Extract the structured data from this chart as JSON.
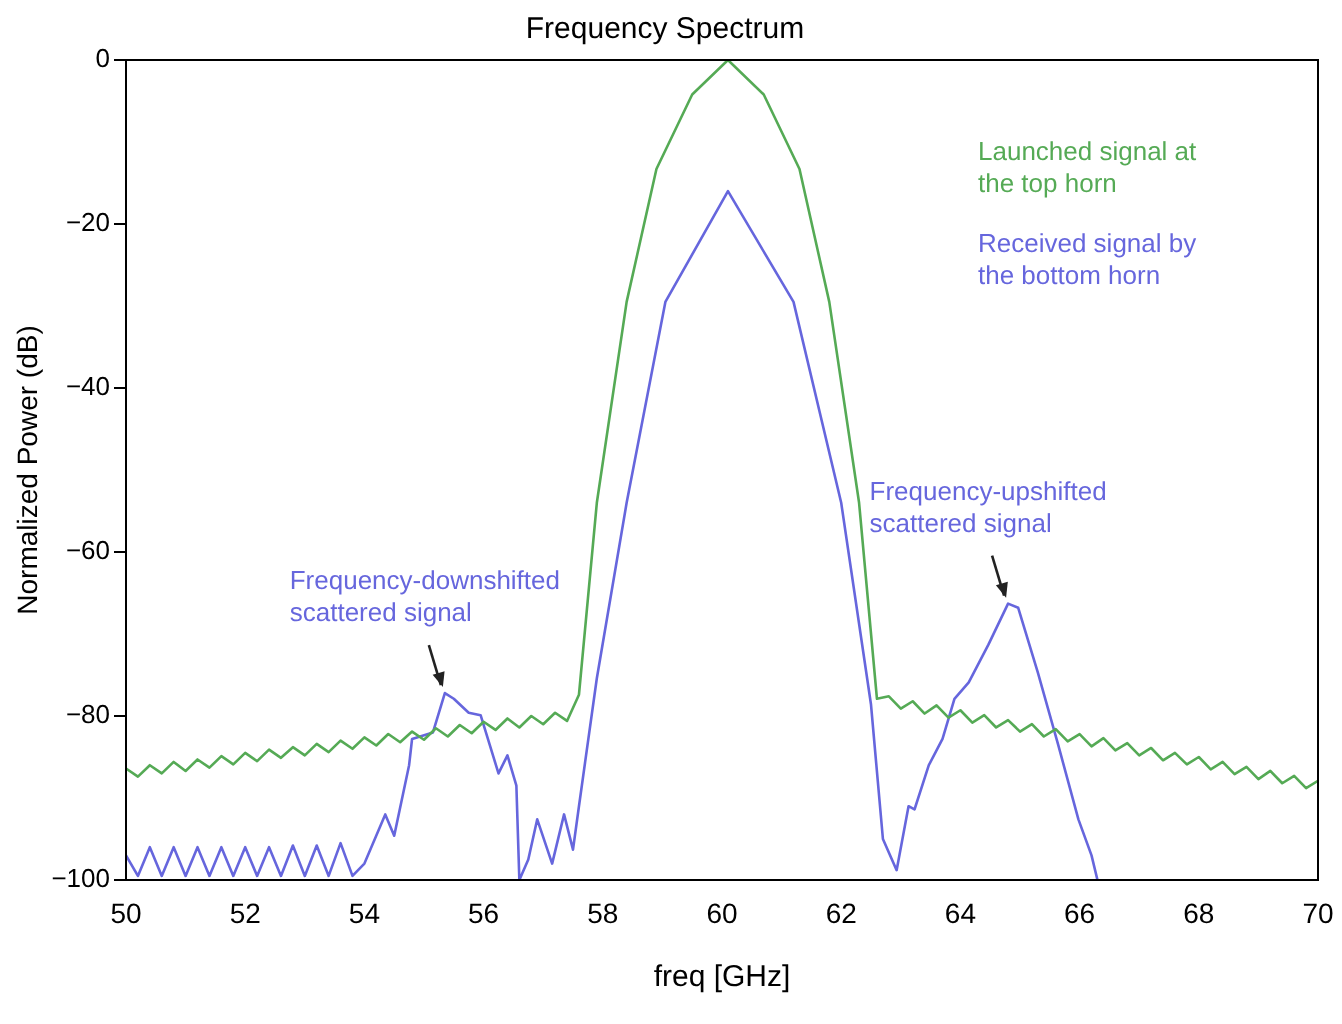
{
  "chart_data": {
    "type": "line",
    "title": "Frequency Spectrum",
    "xlabel": "freq [GHz]",
    "ylabel": "Normalized Power (dB)",
    "xlim": [
      50,
      70
    ],
    "xticks": [
      50,
      52,
      54,
      56,
      58,
      60,
      62,
      64,
      66,
      68,
      70
    ],
    "ylim": [
      -100,
      0
    ],
    "yticks": [
      -100,
      -80,
      -60,
      -40,
      -20,
      0
    ],
    "grid": false,
    "legend": "top right",
    "marker": "none",
    "line_style": "solid",
    "series": [
      {
        "name": "Launched signal at the top horn",
        "color": "#55aa55",
        "x": [
          50,
          50.2,
          50.4,
          50.6,
          50.8,
          51,
          51.2,
          51.4,
          51.6,
          51.8,
          52,
          52.2,
          52.4,
          52.6,
          52.8,
          53,
          53.2,
          53.4,
          53.6,
          53.8,
          54,
          54.2,
          54.4,
          54.6,
          54.8,
          55,
          55.2,
          55.4,
          55.6,
          55.8,
          56,
          56.2,
          56.4,
          56.6,
          56.8,
          57,
          57.2,
          57.4,
          57.6,
          57.9,
          58.4,
          58.9,
          59.5,
          60.1,
          60.7,
          61.3,
          61.8,
          62.3,
          62.6,
          62.8,
          63,
          63.2,
          63.4,
          63.6,
          63.8,
          64,
          64.2,
          64.4,
          64.6,
          64.8,
          65,
          65.2,
          65.4,
          65.6,
          65.8,
          66,
          66.2,
          66.4,
          66.6,
          66.8,
          67,
          67.2,
          67.4,
          67.6,
          67.8,
          68,
          68.2,
          68.4,
          68.6,
          68.8,
          69,
          69.2,
          69.4,
          69.6,
          69.8,
          70
        ],
        "values": [
          -86.4,
          -87.4,
          -86,
          -87,
          -85.6,
          -86.7,
          -85.3,
          -86.3,
          -84.9,
          -85.9,
          -84.5,
          -85.5,
          -84.1,
          -85.1,
          -83.8,
          -84.8,
          -83.4,
          -84.4,
          -83,
          -84,
          -82.6,
          -83.6,
          -82.2,
          -83.2,
          -81.9,
          -82.9,
          -81.5,
          -82.5,
          -81.1,
          -82.1,
          -80.7,
          -81.7,
          -80.3,
          -81.4,
          -80,
          -81,
          -79.6,
          -80.6,
          -77.4,
          -54,
          -29.5,
          -13.3,
          -4.2,
          0,
          -4.2,
          -13.3,
          -29.5,
          -54,
          -77.9,
          -77.6,
          -79.1,
          -78.2,
          -79.7,
          -78.7,
          -80.2,
          -79.3,
          -80.8,
          -79.9,
          -81.4,
          -80.5,
          -81.9,
          -81,
          -82.5,
          -81.6,
          -83.1,
          -82.2,
          -83.7,
          -82.7,
          -84.2,
          -83.3,
          -84.8,
          -83.9,
          -85.4,
          -84.5,
          -85.9,
          -85,
          -86.5,
          -85.6,
          -87.1,
          -86.2,
          -87.7,
          -86.7,
          -88.2,
          -87.3,
          -88.8,
          -87.9
        ]
      },
      {
        "name": "Received signal by the bottom horn",
        "color": "#6666dd",
        "x": [
          50,
          50.2,
          50.4,
          50.6,
          50.8,
          51,
          51.2,
          51.4,
          51.6,
          51.8,
          52,
          52.2,
          52.4,
          52.6,
          52.8,
          53,
          53.2,
          53.4,
          53.6,
          53.8,
          54,
          54.35,
          54.5,
          54.75,
          54.8,
          55.15,
          55.35,
          55.5,
          55.75,
          55.95,
          56.25,
          56.4,
          56.55,
          56.6,
          56.75,
          56.9,
          57.15,
          57.35,
          57.5,
          57.6,
          57.9,
          58.4,
          59.05,
          60.1,
          61.2,
          62,
          62.5,
          62.7,
          62.93,
          63.13,
          63.23,
          63.47,
          63.7,
          63.9,
          64.14,
          64.47,
          64.8,
          64.97,
          65.3,
          65.64,
          65.98,
          66.2,
          66.3
        ],
        "values": [
          -97,
          -99.5,
          -96,
          -99.5,
          -96,
          -99.5,
          -96,
          -99.5,
          -96,
          -99.5,
          -96,
          -99.5,
          -96,
          -99.5,
          -95.8,
          -99.5,
          -95.8,
          -99.5,
          -95.5,
          -99.5,
          -98,
          -92,
          -94.6,
          -86,
          -82.8,
          -82,
          -77.2,
          -77.9,
          -79.6,
          -79.9,
          -87,
          -84.8,
          -88.5,
          -100,
          -97.5,
          -92.6,
          -98,
          -92,
          -96.3,
          -91,
          -75.4,
          -54,
          -29.5,
          -16,
          -29.5,
          -54,
          -78.6,
          -95,
          -98.8,
          -91,
          -91.4,
          -86,
          -82.8,
          -77.9,
          -75.9,
          -71.3,
          -66.3,
          -66.8,
          -74.7,
          -83.5,
          -92.6,
          -97,
          -100
        ]
      }
    ],
    "annotations": [
      {
        "text": "Frequency-downshifted scattered signal",
        "x": 55.35,
        "y": -77.2
      },
      {
        "text": "Frequency-upshifted scattered signal",
        "x": 64.8,
        "y": -66.3
      }
    ]
  }
}
